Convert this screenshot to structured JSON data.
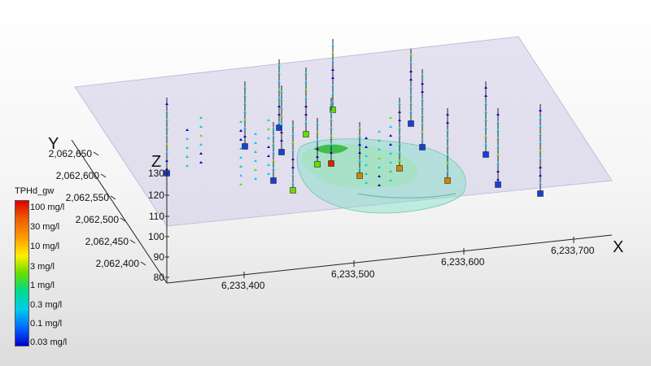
{
  "legend": {
    "title": "TPHd_gw",
    "labels": [
      "100 mg/l",
      "30 mg/l",
      "10 mg/l",
      "3 mg/l",
      "1 mg/l",
      "0.3 mg/l",
      "0.1 mg/l",
      "0.03 mg/l"
    ]
  },
  "axes": {
    "x": {
      "name": "X",
      "ticks": [
        "6,233,400",
        "6,233,500",
        "6,233,600",
        "6,233,700"
      ]
    },
    "y": {
      "name": "Y",
      "ticks": [
        "2,062,650",
        "2,062,600",
        "2,062,550",
        "2,062,500",
        "2,062,450",
        "2,062,400"
      ]
    },
    "z": {
      "name": "Z",
      "ticks": [
        "130",
        "120",
        "110",
        "100",
        "90",
        "80"
      ]
    }
  },
  "colors": {
    "low": "#0000cc",
    "medium": "#00ccee",
    "mid_high": "#66dd00",
    "high": "#ff9900",
    "very_high": "#dd0000",
    "plume": "#7fe0c8",
    "plane": "#d9d6ec"
  }
}
